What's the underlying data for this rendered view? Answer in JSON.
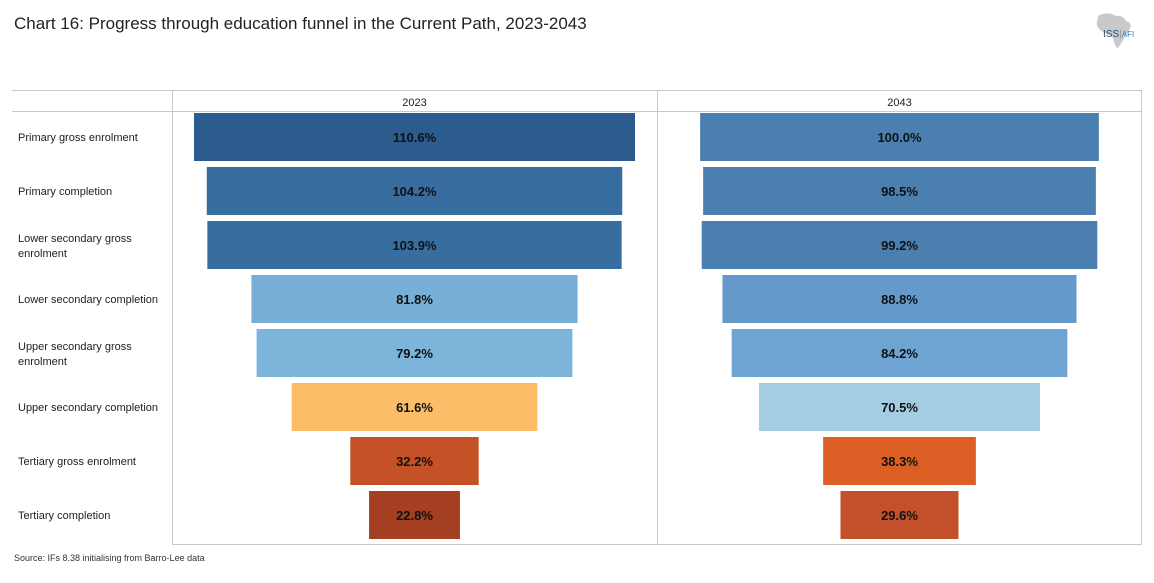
{
  "title": "Chart 16: Progress through education funnel in the Current Path, 2023-2043",
  "logo": {
    "main": "ISS",
    "sub": "AFI"
  },
  "source": "Source: IFs 8.38 initialising from Barro-Lee data",
  "chart_data": {
    "type": "bar",
    "subtype": "funnel",
    "title": "Chart 16: Progress through education funnel in the Current Path, 2023-2043",
    "categories": [
      "Primary gross enrolment",
      "Primary completion",
      "Lower secondary gross enrolment",
      "Lower secondary completion",
      "Upper secondary gross enrolment",
      "Upper secondary completion",
      "Tertiary gross enrolment",
      "Tertiary completion"
    ],
    "series": [
      {
        "name": "2023",
        "values": [
          110.6,
          104.2,
          103.9,
          81.8,
          79.2,
          61.6,
          32.2,
          22.8
        ],
        "labels": [
          "110.6%",
          "104.2%",
          "103.9%",
          "81.8%",
          "79.2%",
          "61.6%",
          "32.2%",
          "22.8%"
        ],
        "colors": [
          "#2b5c8d",
          "#376d9f",
          "#376d9f",
          "#78afd6",
          "#7db4da",
          "#fbbd68",
          "#c55227",
          "#a43f21"
        ]
      },
      {
        "name": "2043",
        "values": [
          100.0,
          98.5,
          99.2,
          88.8,
          84.2,
          70.5,
          38.3,
          29.6
        ],
        "labels": [
          "100.0%",
          "98.5%",
          "99.2%",
          "88.8%",
          "84.2%",
          "70.5%",
          "38.3%",
          "29.6%"
        ],
        "colors": [
          "#4a7fb0",
          "#4a7fb0",
          "#4a7fb0",
          "#649acb",
          "#6ea4d2",
          "#a4cde4",
          "#db5f24",
          "#c2502a"
        ]
      }
    ],
    "unit": "%",
    "xlim": [
      0,
      110.6
    ],
    "grid": false,
    "legend": "none"
  }
}
